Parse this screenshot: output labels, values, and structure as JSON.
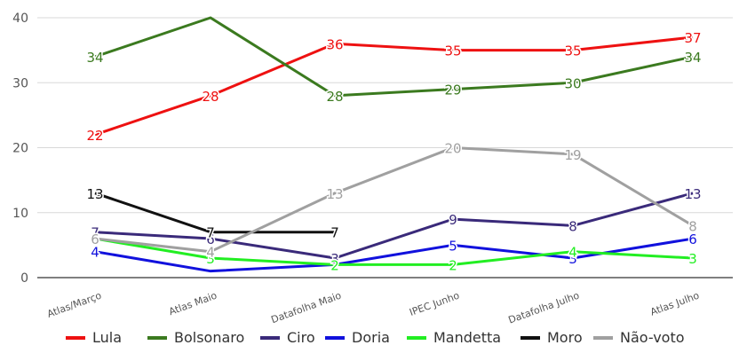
{
  "chart_data": {
    "type": "line",
    "title": "",
    "xlabel": "",
    "ylabel": "",
    "ylim": [
      0,
      40
    ],
    "yticks": [
      0,
      10,
      20,
      30,
      40
    ],
    "grid": true,
    "legend_position": "bottom",
    "categories": [
      "Atlas/Março",
      "Atlas Maio",
      "Datafolha Maio",
      "IPEC Junho",
      "Datafolha Julho",
      "Atlas Julho"
    ],
    "series": [
      {
        "name": "Lula",
        "color": "#ee1111",
        "values": [
          22,
          28,
          36,
          35,
          35,
          37
        ]
      },
      {
        "name": "Bolsonaro",
        "color": "#3b7a1f",
        "values": [
          34,
          40,
          28,
          29,
          30,
          34
        ]
      },
      {
        "name": "Ciro",
        "color": "#3a2a7a",
        "values": [
          7,
          6,
          3,
          9,
          8,
          13
        ]
      },
      {
        "name": "Doria",
        "color": "#1111dd",
        "values": [
          4,
          1,
          2,
          5,
          3,
          6
        ]
      },
      {
        "name": "Mandetta",
        "color": "#22ee22",
        "values": [
          6,
          3,
          2,
          2,
          4,
          3
        ]
      },
      {
        "name": "Moro",
        "color": "#111111",
        "values": [
          13,
          7,
          7,
          null,
          null,
          null
        ]
      },
      {
        "name": "Não-voto",
        "color": "#a0a0a0",
        "values": [
          6,
          4,
          13,
          20,
          19,
          8
        ]
      }
    ],
    "data_labels": [
      {
        "series": 0,
        "labels": [
          "22",
          "28",
          "36",
          "35",
          "35",
          "37"
        ]
      },
      {
        "series": 1,
        "labels": [
          "34",
          "",
          "28",
          "29",
          "30",
          "34"
        ]
      },
      {
        "series": 2,
        "labels": [
          "7",
          "6",
          "3",
          "9",
          "8",
          "13"
        ]
      },
      {
        "series": 3,
        "labels": [
          "4",
          "",
          "",
          "5",
          "3",
          "6"
        ]
      },
      {
        "series": 4,
        "labels": [
          "",
          "3",
          "2",
          "2",
          "4",
          "3"
        ]
      },
      {
        "series": 5,
        "labels": [
          "13",
          "7",
          "7",
          "",
          "",
          ""
        ]
      },
      {
        "series": 6,
        "labels": [
          "6",
          "4",
          "13",
          "20",
          "19",
          "8"
        ]
      }
    ]
  }
}
